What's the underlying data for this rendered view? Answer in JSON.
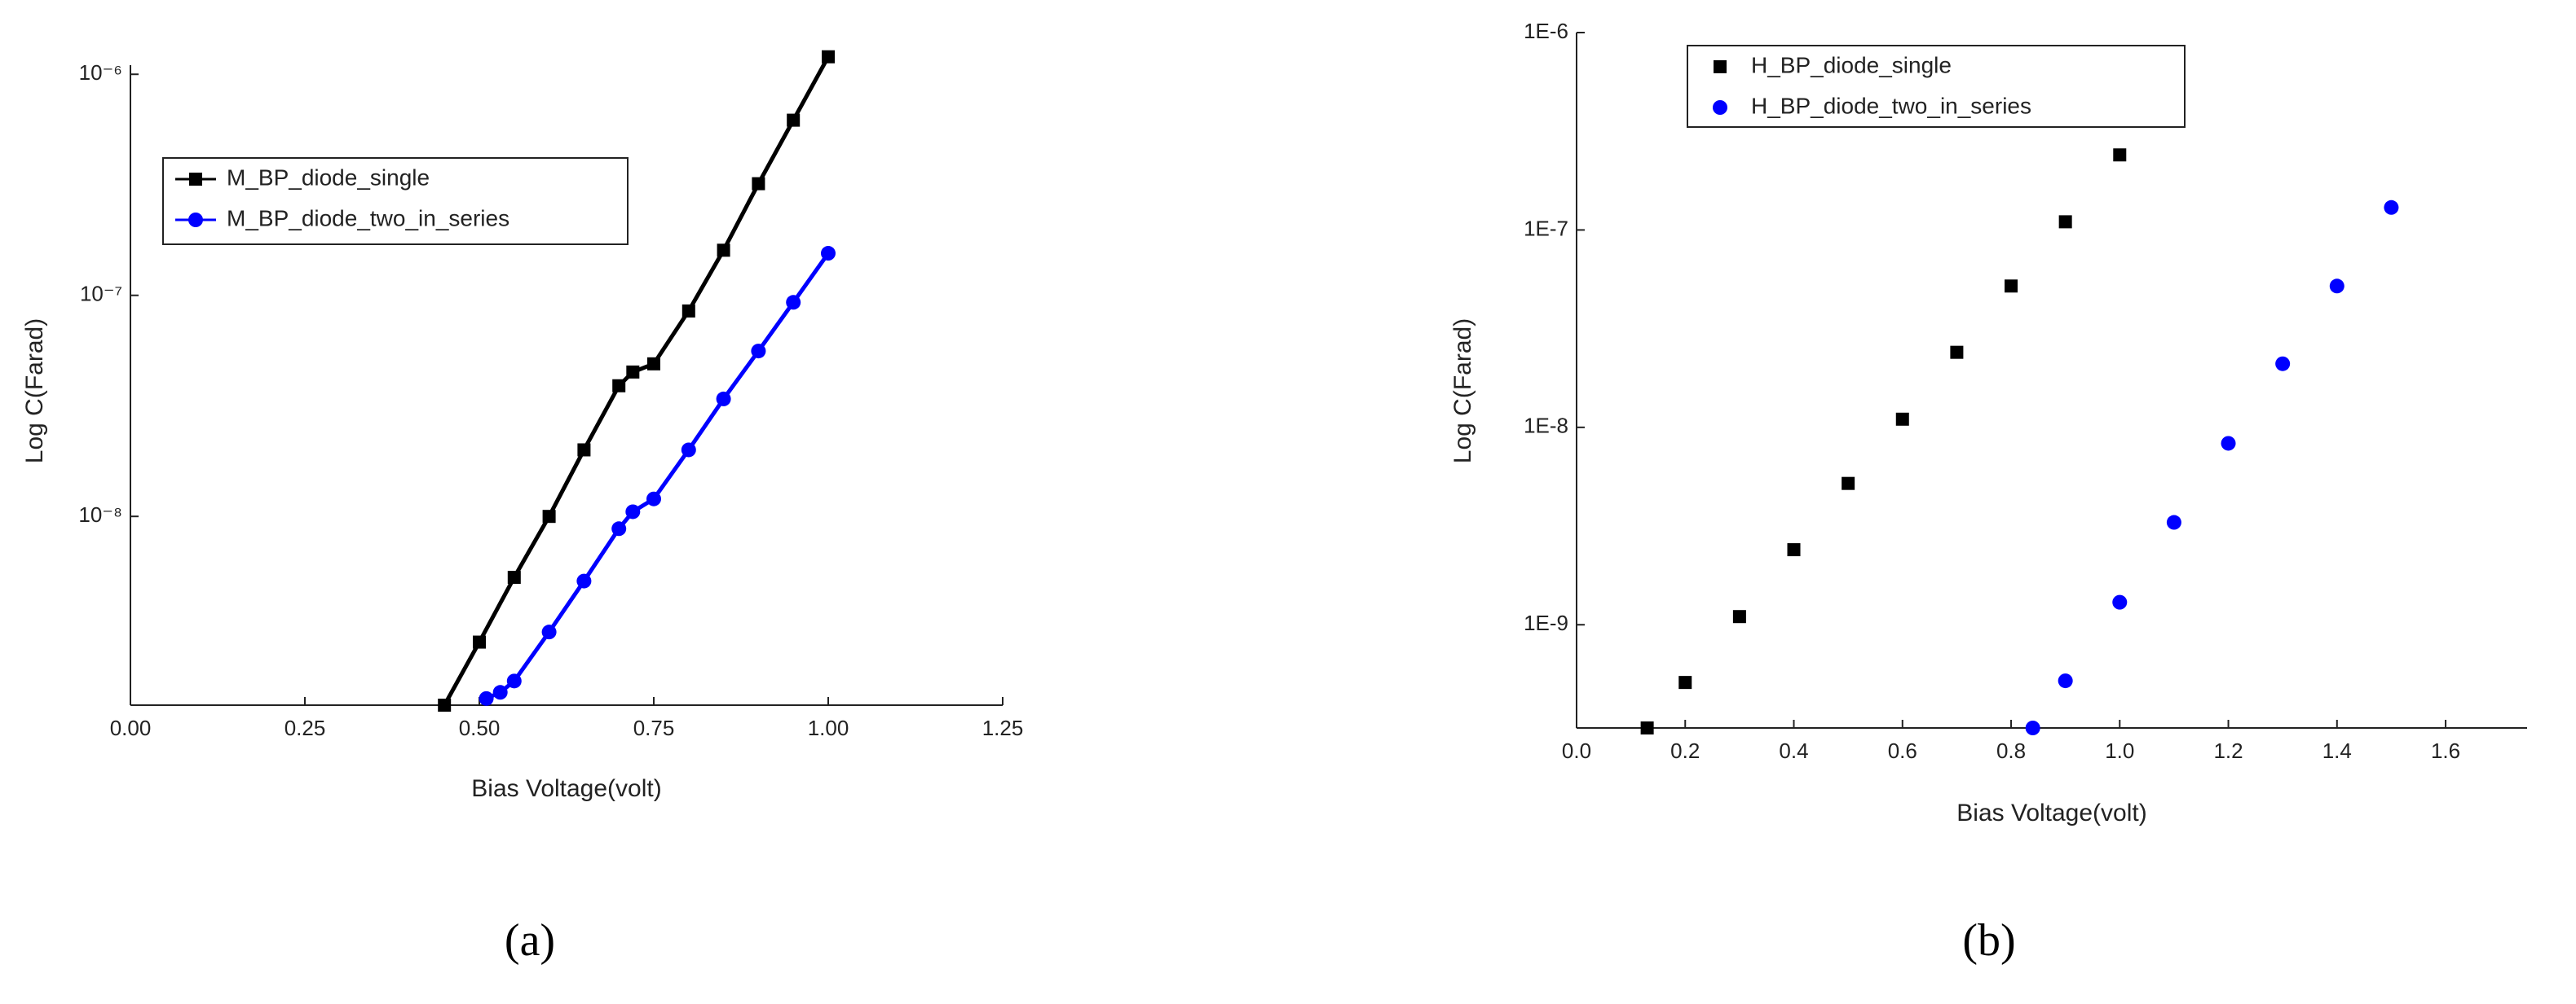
{
  "chart_data": [
    {
      "type": "line",
      "log_y": true,
      "legend": "upper left",
      "x_label": "Bias Voltage(volt)",
      "y_label": "Log C(Farad)",
      "caption": "(a)",
      "xlim": [
        0,
        1.25
      ],
      "xticks": [
        {
          "value": 0,
          "label": "0.00"
        },
        {
          "value": 0.25,
          "label": "0.25"
        },
        {
          "value": 0.5,
          "label": "0.50"
        },
        {
          "value": 0.75,
          "label": "0.75"
        },
        {
          "value": 1,
          "label": "1.00"
        },
        {
          "value": 1.25,
          "label": "1.25"
        }
      ],
      "ylim": [
        1.4e-09,
        1.1e-06
      ],
      "yticks": [
        {
          "value": 1e-08,
          "label": "10⁻⁸"
        },
        {
          "value": 1e-07,
          "label": "10⁻⁷"
        },
        {
          "value": 1e-06,
          "label": "10⁻⁶"
        }
      ],
      "series": [
        {
          "name": "M_BP_diode_single",
          "color": "#000000",
          "marker": "square",
          "x": [
            0.45,
            0.5,
            0.55,
            0.6,
            0.65,
            0.7,
            0.72,
            0.75,
            0.8,
            0.85,
            0.9,
            0.95,
            1.0
          ],
          "values": [
            1.4e-09,
            2.7e-09,
            5.3e-09,
            1e-08,
            2e-08,
            3.9e-08,
            4.5e-08,
            4.9e-08,
            8.5e-08,
            1.6e-07,
            3.2e-07,
            6.2e-07,
            1.2e-06
          ]
        },
        {
          "name": "M_BP_diode_two_in_series",
          "color": "#0000ff",
          "marker": "circle",
          "x": [
            0.51,
            0.53,
            0.55,
            0.6,
            0.65,
            0.7,
            0.72,
            0.75,
            0.8,
            0.85,
            0.9,
            0.95,
            1.0
          ],
          "values": [
            1.5e-09,
            1.6e-09,
            1.8e-09,
            3e-09,
            5.1e-09,
            8.8e-09,
            1.05e-08,
            1.2e-08,
            2e-08,
            3.4e-08,
            5.6e-08,
            9.3e-08,
            1.55e-07
          ]
        }
      ]
    },
    {
      "type": "scatter",
      "log_y": true,
      "legend": "upper left",
      "x_label": "Bias Voltage(volt)",
      "y_label": "Log C(Farad)",
      "caption": "(b)",
      "xlim": [
        0,
        1.75
      ],
      "xticks": [
        {
          "value": 0,
          "label": "0.0"
        },
        0.2,
        0.4,
        0.6,
        0.8,
        {
          "value": 1,
          "label": "1.0"
        },
        1.2,
        1.4,
        1.6
      ],
      "ylim": [
        3e-10,
        1e-06
      ],
      "yticks": [
        {
          "value": 1e-09,
          "label": "1E-9"
        },
        {
          "value": 1e-08,
          "label": "1E-8"
        },
        {
          "value": 1e-07,
          "label": "1E-7"
        },
        {
          "value": 1e-06,
          "label": "1E-6"
        }
      ],
      "series": [
        {
          "name": "H_BP_diode_single",
          "color": "#000000",
          "marker": "square",
          "x": [
            0.13,
            0.2,
            0.3,
            0.4,
            0.5,
            0.6,
            0.7,
            0.8,
            0.9,
            1.0
          ],
          "values": [
            3e-10,
            5.1e-10,
            1.1e-09,
            2.4e-09,
            5.2e-09,
            1.1e-08,
            2.4e-08,
            5.2e-08,
            1.1e-07,
            2.4e-07
          ]
        },
        {
          "name": "H_BP_diode_two_in_series",
          "color": "#0000ff",
          "marker": "circle",
          "x": [
            0.84,
            0.9,
            1.0,
            1.1,
            1.2,
            1.3,
            1.4,
            1.5
          ],
          "values": [
            3e-10,
            5.2e-10,
            1.3e-09,
            3.3e-09,
            8.3e-09,
            2.1e-08,
            5.2e-08,
            1.3e-07
          ]
        }
      ]
    }
  ]
}
